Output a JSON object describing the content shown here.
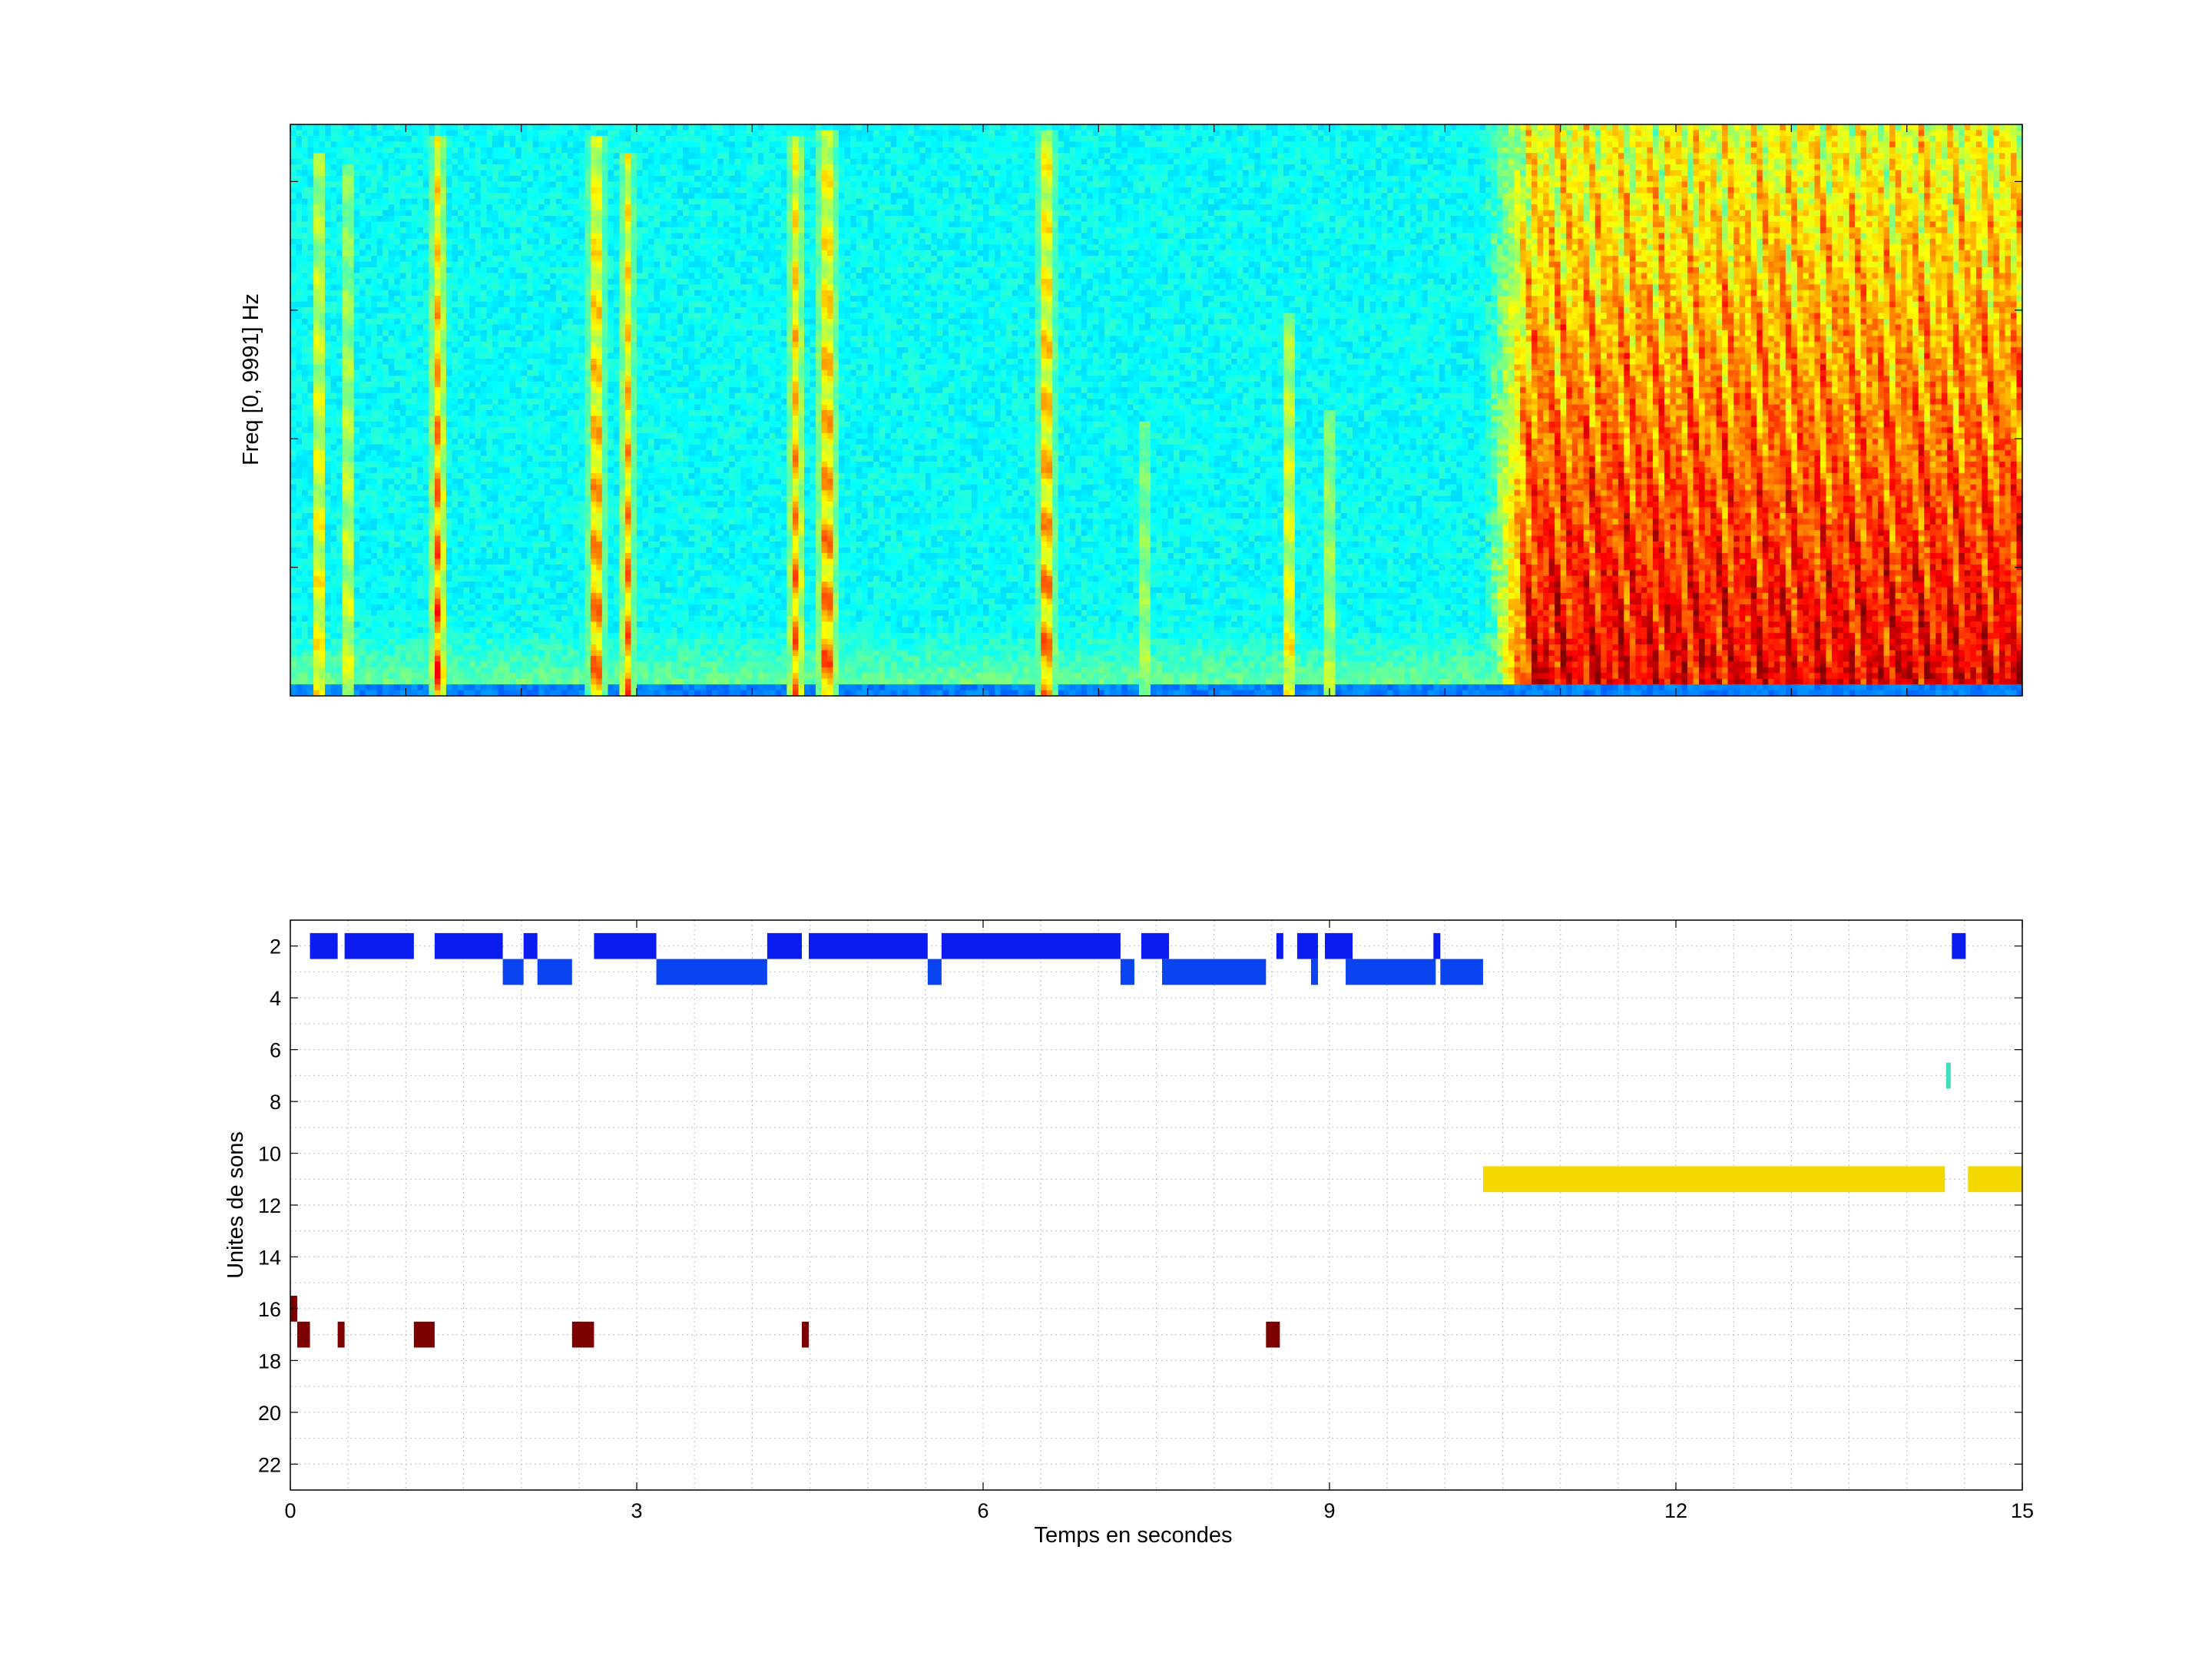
{
  "chart_data": [
    {
      "type": "heatmap",
      "kind": "spectrogram",
      "title": "",
      "xlabel": "",
      "ylabel": "Freq [0, 9991] Hz",
      "xlim": [
        0,
        15
      ],
      "ylim": [
        0,
        9991
      ],
      "x_unit": "s",
      "y_unit": "Hz",
      "colormap": "jet",
      "grid": false,
      "background_level": 0.38,
      "calls": [
        {
          "t": 0.25,
          "width": 0.06,
          "top_frac": 0.95,
          "intensity": 0.85
        },
        {
          "t": 0.5,
          "width": 0.06,
          "top_frac": 0.93,
          "intensity": 0.75
        },
        {
          "t": 1.28,
          "width": 0.08,
          "top_frac": 0.98,
          "intensity": 0.9
        },
        {
          "t": 2.65,
          "width": 0.09,
          "top_frac": 0.98,
          "intensity": 0.95
        },
        {
          "t": 2.92,
          "width": 0.07,
          "top_frac": 0.95,
          "intensity": 0.85
        },
        {
          "t": 4.38,
          "width": 0.08,
          "top_frac": 0.98,
          "intensity": 0.85
        },
        {
          "t": 4.65,
          "width": 0.1,
          "top_frac": 0.99,
          "intensity": 0.95
        },
        {
          "t": 6.55,
          "width": 0.09,
          "top_frac": 0.99,
          "intensity": 0.95
        },
        {
          "t": 7.4,
          "width": 0.05,
          "top_frac": 0.48,
          "intensity": 0.7
        },
        {
          "t": 8.65,
          "width": 0.07,
          "top_frac": 0.67,
          "intensity": 0.8
        },
        {
          "t": 9.0,
          "width": 0.06,
          "top_frac": 0.5,
          "intensity": 0.7
        }
      ],
      "noise_region": {
        "t_start": 10.35,
        "t_end": 15,
        "intensity": 0.85
      }
    },
    {
      "type": "scatter",
      "kind": "unit-timeline",
      "title": "",
      "xlabel": "Temps en secondes",
      "ylabel": "Unites de sons",
      "xlim": [
        0,
        15
      ],
      "ylim": [
        1,
        23
      ],
      "y_reversed": true,
      "grid": true,
      "x_ticks": [
        0,
        3,
        6,
        9,
        12,
        15
      ],
      "y_ticks": [
        2,
        4,
        6,
        8,
        10,
        12,
        14,
        16,
        18,
        20,
        22
      ],
      "colors": {
        "2": "#0a1cf0",
        "3": "#0a44f0",
        "7": "#3fdcc0",
        "11": "#f5d800",
        "16": "#7d0000",
        "17": "#7d0000"
      },
      "segments": [
        {
          "unit": 2,
          "start": 0.17,
          "end": 0.41
        },
        {
          "unit": 2,
          "start": 0.47,
          "end": 1.07
        },
        {
          "unit": 2,
          "start": 1.25,
          "end": 1.84
        },
        {
          "unit": 2,
          "start": 2.02,
          "end": 2.14
        },
        {
          "unit": 2,
          "start": 2.63,
          "end": 3.17
        },
        {
          "unit": 2,
          "start": 4.13,
          "end": 4.43
        },
        {
          "unit": 2,
          "start": 4.49,
          "end": 5.52
        },
        {
          "unit": 2,
          "start": 5.64,
          "end": 7.19
        },
        {
          "unit": 2,
          "start": 7.37,
          "end": 7.61
        },
        {
          "unit": 2,
          "start": 8.54,
          "end": 8.6
        },
        {
          "unit": 2,
          "start": 8.72,
          "end": 8.9
        },
        {
          "unit": 2,
          "start": 8.96,
          "end": 9.2
        },
        {
          "unit": 2,
          "start": 9.9,
          "end": 9.96
        },
        {
          "unit": 2,
          "start": 14.39,
          "end": 14.51
        },
        {
          "unit": 3,
          "start": 1.84,
          "end": 2.02
        },
        {
          "unit": 3,
          "start": 2.14,
          "end": 2.44
        },
        {
          "unit": 3,
          "start": 3.17,
          "end": 4.13
        },
        {
          "unit": 3,
          "start": 5.52,
          "end": 5.64
        },
        {
          "unit": 3,
          "start": 7.19,
          "end": 7.31
        },
        {
          "unit": 3,
          "start": 7.55,
          "end": 8.45
        },
        {
          "unit": 3,
          "start": 8.84,
          "end": 8.9
        },
        {
          "unit": 3,
          "start": 9.14,
          "end": 9.92
        },
        {
          "unit": 3,
          "start": 9.96,
          "end": 10.33
        },
        {
          "unit": 7,
          "start": 14.34,
          "end": 14.38
        },
        {
          "unit": 11,
          "start": 10.33,
          "end": 14.33
        },
        {
          "unit": 11,
          "start": 14.53,
          "end": 15.0
        },
        {
          "unit": 16,
          "start": 0.0,
          "end": 0.06
        },
        {
          "unit": 17,
          "start": 0.06,
          "end": 0.17
        },
        {
          "unit": 17,
          "start": 0.41,
          "end": 0.47
        },
        {
          "unit": 17,
          "start": 1.07,
          "end": 1.25
        },
        {
          "unit": 17,
          "start": 2.44,
          "end": 2.63
        },
        {
          "unit": 17,
          "start": 4.43,
          "end": 4.49
        },
        {
          "unit": 17,
          "start": 8.45,
          "end": 8.57
        }
      ]
    }
  ]
}
